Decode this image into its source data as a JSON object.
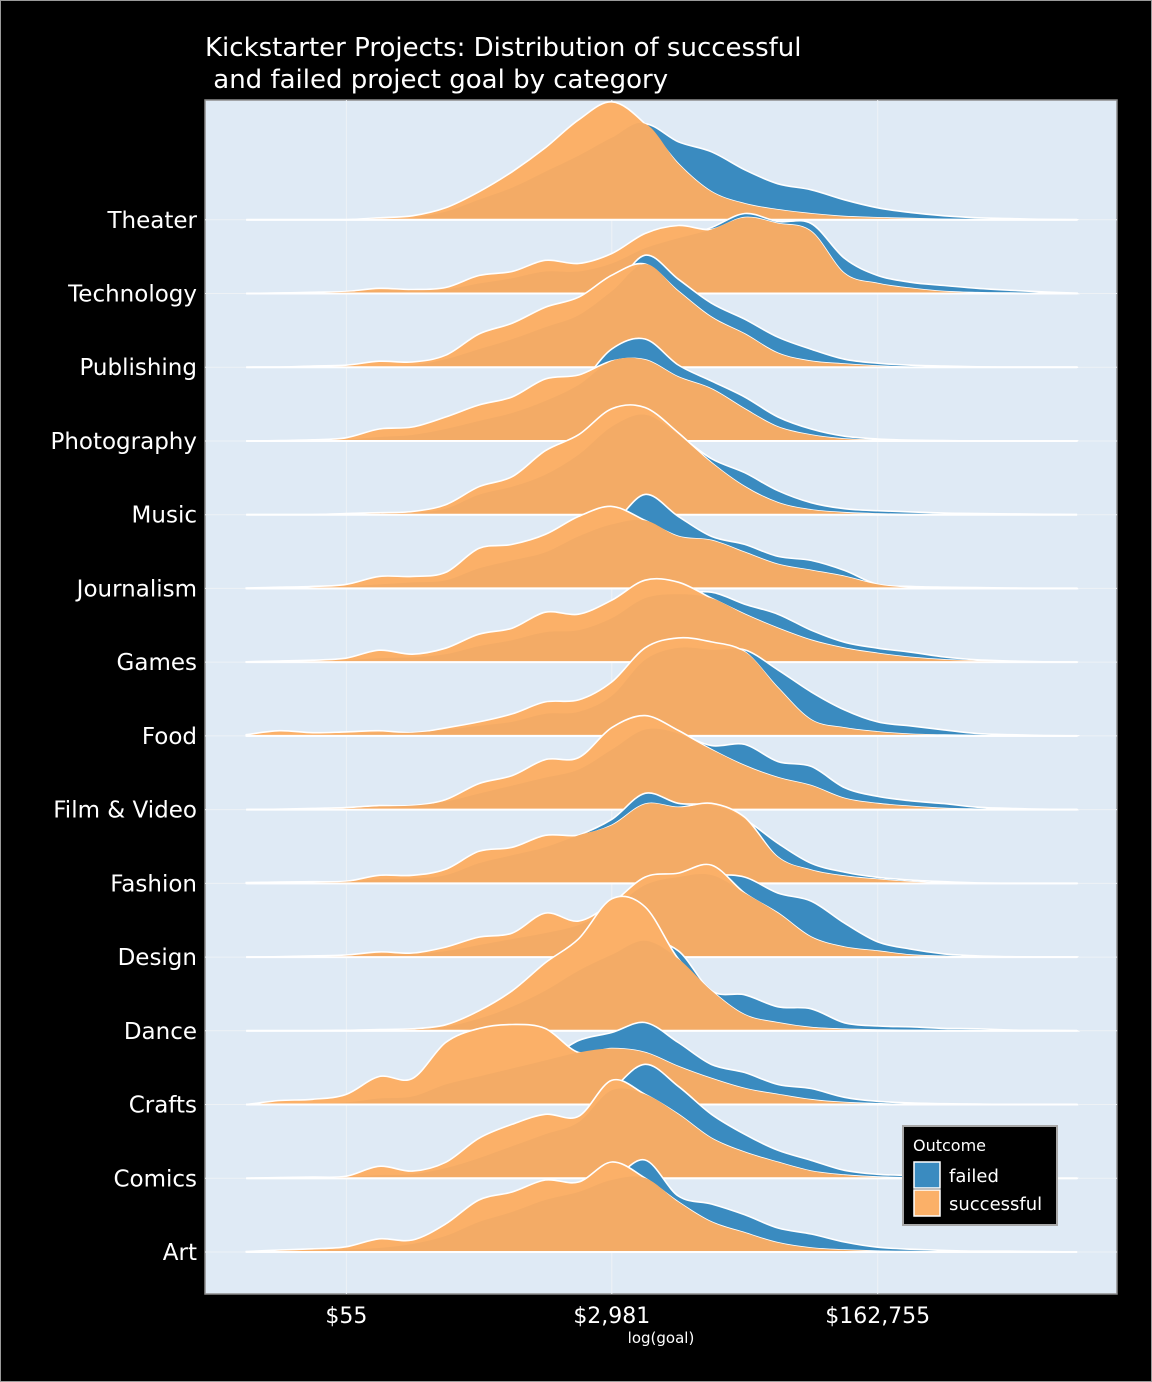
{
  "chart_data": {
    "type": "ridgeline",
    "title_line1": "Kickstarter Projects: Distribution of successful",
    "title_line2": " and failed project goal by category",
    "xlabel": "log(goal)",
    "ylabel": "",
    "xscale": "natural log of goal",
    "xlim": [
      1.88,
      15.6
    ],
    "xticks": {
      "values": [
        4.007,
        8.0,
        12.0
      ],
      "labels": [
        "$55",
        "$2,981",
        "$162,755"
      ]
    },
    "grid": true,
    "legend": {
      "title": "Outcome",
      "placement": "bottom-right",
      "entries": [
        "failed",
        "successful"
      ]
    },
    "colors": {
      "failed": "#3a8bc0",
      "successful": "#fbb068",
      "plot_background": "#dfeaf5",
      "background": "#000000"
    },
    "x": [
      2.5,
      3.0,
      3.5,
      4.0,
      4.5,
      5.0,
      5.5,
      6.0,
      6.5,
      7.0,
      7.5,
      8.0,
      8.5,
      9.0,
      9.5,
      10.0,
      10.5,
      11.0,
      11.5,
      12.0,
      12.5,
      13.0,
      13.5,
      14.0,
      14.5,
      15.0
    ],
    "categories": [
      {
        "name": "Art",
        "failed": [
          0,
          0.002,
          0.003,
          0.006,
          0.01,
          0.02,
          0.04,
          0.075,
          0.1,
          0.13,
          0.15,
          0.18,
          0.23,
          0.14,
          0.12,
          0.093,
          0.06,
          0.045,
          0.025,
          0.012,
          0.007,
          0.004,
          0.002,
          0.002,
          0.001,
          0
        ],
        "successful": [
          0.001,
          0.005,
          0.008,
          0.013,
          0.033,
          0.03,
          0.07,
          0.13,
          0.15,
          0.18,
          0.175,
          0.225,
          0.185,
          0.125,
          0.075,
          0.048,
          0.023,
          0.01,
          0.005,
          0.002,
          0.001,
          0,
          0,
          0,
          0,
          0
        ]
      },
      {
        "name": "Comics",
        "failed": [
          0,
          0,
          0.001,
          0.003,
          0.008,
          0.01,
          0.025,
          0.05,
          0.08,
          0.11,
          0.14,
          0.22,
          0.285,
          0.23,
          0.16,
          0.11,
          0.07,
          0.045,
          0.02,
          0.01,
          0.007,
          0.004,
          0.002,
          0.001,
          0,
          0
        ],
        "successful": [
          0,
          0.002,
          0.003,
          0.005,
          0.03,
          0.018,
          0.04,
          0.1,
          0.135,
          0.16,
          0.155,
          0.245,
          0.21,
          0.16,
          0.1,
          0.065,
          0.04,
          0.018,
          0.008,
          0.003,
          0.001,
          0,
          0,
          0,
          0,
          0
        ]
      },
      {
        "name": "Crafts",
        "failed": [
          0,
          0.002,
          0.003,
          0.005,
          0.015,
          0.02,
          0.05,
          0.07,
          0.09,
          0.11,
          0.16,
          0.18,
          0.205,
          0.155,
          0.1,
          0.08,
          0.05,
          0.04,
          0.018,
          0.008,
          0.004,
          0.002,
          0.001,
          0,
          0,
          0
        ],
        "successful": [
          0,
          0.01,
          0.013,
          0.025,
          0.07,
          0.065,
          0.155,
          0.19,
          0.2,
          0.19,
          0.13,
          0.14,
          0.13,
          0.095,
          0.065,
          0.04,
          0.025,
          0.012,
          0.005,
          0.002,
          0,
          0,
          0,
          0,
          0,
          0
        ]
      },
      {
        "name": "Dance",
        "failed": [
          0,
          0,
          0,
          0.001,
          0.002,
          0.003,
          0.01,
          0.03,
          0.06,
          0.1,
          0.15,
          0.19,
          0.225,
          0.2,
          0.1,
          0.09,
          0.06,
          0.055,
          0.02,
          0.012,
          0.01,
          0.006,
          0.005,
          0.002,
          0.001,
          0
        ],
        "successful": [
          0,
          0,
          0,
          0.001,
          0.003,
          0.005,
          0.015,
          0.05,
          0.1,
          0.17,
          0.23,
          0.33,
          0.31,
          0.18,
          0.1,
          0.04,
          0.02,
          0.008,
          0.004,
          0.002,
          0.001,
          0,
          0,
          0,
          0,
          0
        ]
      },
      {
        "name": "Design",
        "failed": [
          0,
          0,
          0.001,
          0.003,
          0.008,
          0.008,
          0.015,
          0.03,
          0.045,
          0.06,
          0.08,
          0.12,
          0.18,
          0.2,
          0.205,
          0.2,
          0.16,
          0.14,
          0.085,
          0.038,
          0.02,
          0.008,
          0.003,
          0.001,
          0,
          0
        ],
        "successful": [
          0,
          0.001,
          0.003,
          0.005,
          0.013,
          0.01,
          0.025,
          0.05,
          0.06,
          0.11,
          0.09,
          0.135,
          0.2,
          0.21,
          0.23,
          0.16,
          0.11,
          0.05,
          0.025,
          0.015,
          0.005,
          0.002,
          0,
          0,
          0,
          0
        ]
      },
      {
        "name": "Fashion",
        "failed": [
          0,
          0.001,
          0.002,
          0.004,
          0.01,
          0.012,
          0.02,
          0.05,
          0.07,
          0.09,
          0.12,
          0.16,
          0.225,
          0.2,
          0.195,
          0.16,
          0.1,
          0.05,
          0.028,
          0.015,
          0.008,
          0.004,
          0.001,
          0,
          0,
          0
        ],
        "successful": [
          0.002,
          0.003,
          0.004,
          0.005,
          0.02,
          0.02,
          0.035,
          0.08,
          0.09,
          0.12,
          0.12,
          0.145,
          0.198,
          0.19,
          0.2,
          0.165,
          0.065,
          0.033,
          0.018,
          0.01,
          0.004,
          0.001,
          0,
          0,
          0,
          0
        ]
      },
      {
        "name": "Film & Video",
        "failed": [
          0,
          0,
          0.001,
          0.003,
          0.008,
          0.01,
          0.02,
          0.04,
          0.06,
          0.08,
          0.1,
          0.15,
          0.2,
          0.19,
          0.16,
          0.163,
          0.12,
          0.108,
          0.055,
          0.033,
          0.022,
          0.015,
          0.006,
          0.003,
          0.001,
          0
        ],
        "successful": [
          0,
          0.001,
          0.003,
          0.005,
          0.01,
          0.01,
          0.025,
          0.065,
          0.085,
          0.125,
          0.13,
          0.205,
          0.235,
          0.198,
          0.15,
          0.11,
          0.08,
          0.06,
          0.028,
          0.015,
          0.008,
          0.003,
          0.001,
          0,
          0,
          0
        ]
      },
      {
        "name": "Food",
        "failed": [
          0,
          0.002,
          0.003,
          0.005,
          0.008,
          0.008,
          0.015,
          0.025,
          0.035,
          0.055,
          0.06,
          0.1,
          0.19,
          0.22,
          0.215,
          0.215,
          0.165,
          0.11,
          0.065,
          0.035,
          0.025,
          0.015,
          0.006,
          0.003,
          0.001,
          0
        ],
        "successful": [
          0.003,
          0.013,
          0.008,
          0.01,
          0.013,
          0.008,
          0.02,
          0.035,
          0.055,
          0.085,
          0.09,
          0.135,
          0.22,
          0.245,
          0.235,
          0.21,
          0.12,
          0.04,
          0.02,
          0.01,
          0.004,
          0.002,
          0.001,
          0,
          0,
          0
        ]
      },
      {
        "name": "Games",
        "failed": [
          0,
          0.001,
          0.002,
          0.005,
          0.01,
          0.012,
          0.02,
          0.04,
          0.055,
          0.075,
          0.08,
          0.11,
          0.16,
          0.17,
          0.175,
          0.145,
          0.12,
          0.08,
          0.05,
          0.035,
          0.025,
          0.013,
          0.006,
          0.003,
          0.001,
          0
        ],
        "successful": [
          0.001,
          0.003,
          0.005,
          0.01,
          0.03,
          0.02,
          0.035,
          0.07,
          0.085,
          0.125,
          0.12,
          0.155,
          0.205,
          0.2,
          0.16,
          0.12,
          0.085,
          0.055,
          0.035,
          0.022,
          0.012,
          0.006,
          0.003,
          0.001,
          0,
          0
        ]
      },
      {
        "name": "Journalism",
        "failed": [
          0,
          0.001,
          0.002,
          0.005,
          0.01,
          0.015,
          0.02,
          0.05,
          0.07,
          0.09,
          0.13,
          0.16,
          0.235,
          0.18,
          0.13,
          0.11,
          0.08,
          0.07,
          0.045,
          0.01,
          0.005,
          0.003,
          0.002,
          0.001,
          0,
          0
        ],
        "successful": [
          0.001,
          0.003,
          0.005,
          0.01,
          0.03,
          0.03,
          0.04,
          0.1,
          0.11,
          0.135,
          0.18,
          0.205,
          0.17,
          0.13,
          0.12,
          0.09,
          0.06,
          0.045,
          0.03,
          0.01,
          0.002,
          0,
          0,
          0,
          0,
          0
        ]
      },
      {
        "name": "Music",
        "failed": [
          0,
          0,
          0,
          0,
          0.003,
          0.005,
          0.015,
          0.05,
          0.07,
          0.1,
          0.15,
          0.22,
          0.25,
          0.2,
          0.14,
          0.105,
          0.06,
          0.03,
          0.015,
          0.01,
          0.007,
          0.004,
          0.003,
          0.002,
          0.001,
          0
        ],
        "successful": [
          0,
          0,
          0,
          0.003,
          0.005,
          0.008,
          0.025,
          0.07,
          0.095,
          0.16,
          0.2,
          0.265,
          0.268,
          0.205,
          0.13,
          0.07,
          0.03,
          0.012,
          0.005,
          0.002,
          0,
          0,
          0,
          0,
          0,
          0
        ]
      },
      {
        "name": "Photography",
        "failed": [
          0,
          0,
          0,
          0.003,
          0.01,
          0.015,
          0.03,
          0.05,
          0.07,
          0.1,
          0.14,
          0.23,
          0.255,
          0.19,
          0.15,
          0.11,
          0.06,
          0.03,
          0.012,
          0.005,
          0.002,
          0.001,
          0,
          0,
          0,
          0
        ],
        "successful": [
          0,
          0.001,
          0.003,
          0.008,
          0.03,
          0.035,
          0.06,
          0.09,
          0.11,
          0.155,
          0.165,
          0.2,
          0.203,
          0.16,
          0.13,
          0.08,
          0.035,
          0.015,
          0.005,
          0.002,
          0.001,
          0,
          0,
          0,
          0,
          0
        ]
      },
      {
        "name": "Publishing",
        "failed": [
          0,
          0,
          0,
          0,
          0.003,
          0.005,
          0.02,
          0.045,
          0.07,
          0.1,
          0.13,
          0.19,
          0.28,
          0.22,
          0.16,
          0.12,
          0.075,
          0.045,
          0.02,
          0.01,
          0.005,
          0.003,
          0.001,
          0,
          0,
          0
        ],
        "successful": [
          0,
          0,
          0.003,
          0.005,
          0.015,
          0.013,
          0.03,
          0.083,
          0.11,
          0.15,
          0.175,
          0.23,
          0.258,
          0.19,
          0.125,
          0.083,
          0.035,
          0.015,
          0.008,
          0.003,
          0,
          0,
          0,
          0,
          0,
          0
        ]
      },
      {
        "name": "Technology",
        "failed": [
          0,
          0.001,
          0.002,
          0.004,
          0.008,
          0.008,
          0.01,
          0.025,
          0.038,
          0.055,
          0.055,
          0.075,
          0.113,
          0.138,
          0.165,
          0.2,
          0.18,
          0.175,
          0.088,
          0.045,
          0.028,
          0.02,
          0.013,
          0.008,
          0.004,
          0.001
        ],
        "successful": [
          0,
          0.001,
          0.003,
          0.005,
          0.013,
          0.01,
          0.015,
          0.045,
          0.055,
          0.083,
          0.075,
          0.1,
          0.15,
          0.17,
          0.16,
          0.19,
          0.175,
          0.155,
          0.05,
          0.025,
          0.013,
          0.005,
          0.002,
          0.001,
          0,
          0
        ]
      },
      {
        "name": "Theater",
        "failed": [
          0,
          0,
          0,
          0,
          0.003,
          0.005,
          0.02,
          0.05,
          0.08,
          0.12,
          0.16,
          0.205,
          0.24,
          0.195,
          0.17,
          0.125,
          0.09,
          0.075,
          0.05,
          0.03,
          0.018,
          0.01,
          0.005,
          0.003,
          0.001,
          0
        ],
        "successful": [
          0,
          0,
          0,
          0,
          0.005,
          0.01,
          0.03,
          0.07,
          0.12,
          0.18,
          0.25,
          0.295,
          0.24,
          0.14,
          0.07,
          0.04,
          0.025,
          0.015,
          0.008,
          0.005,
          0.003,
          0.001,
          0,
          0,
          0,
          0
        ]
      }
    ]
  }
}
